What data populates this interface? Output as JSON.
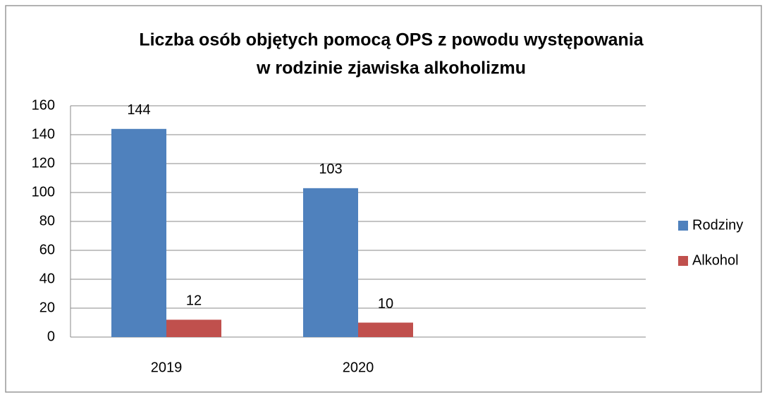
{
  "chart_data": {
    "type": "bar",
    "title": [
      "Liczba osób objętych pomocą OPS z powodu występowania",
      "w rodzinie zjawiska alkoholizmu"
    ],
    "categories": [
      "2019",
      "2020",
      null
    ],
    "series": [
      {
        "name": "Rodziny",
        "color": "#4f81bd",
        "values": [
          144,
          103,
          null
        ]
      },
      {
        "name": "Alkohol",
        "color": "#c0504d",
        "values": [
          12,
          10,
          null
        ]
      }
    ],
    "ylim": [
      0,
      160
    ],
    "yticks": [
      0,
      20,
      40,
      60,
      80,
      100,
      120,
      140,
      160
    ],
    "grid": true,
    "legend": "right"
  }
}
